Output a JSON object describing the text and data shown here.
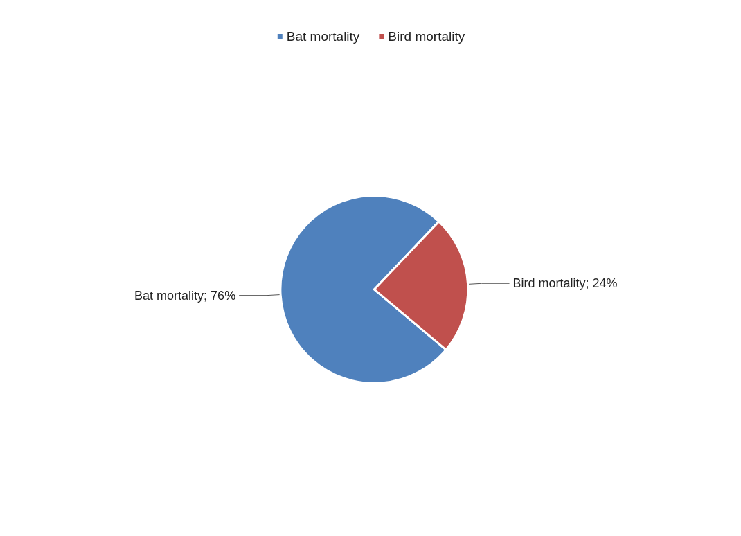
{
  "chart_data": {
    "type": "pie",
    "categories": [
      "Bat mortality",
      "Bird mortality"
    ],
    "values": [
      76,
      24
    ],
    "colors": [
      "#4f81bd",
      "#c0504d"
    ],
    "value_labels": [
      "Bat mortality; 76%",
      "Bird mortality; 24%"
    ],
    "legend": "top"
  }
}
